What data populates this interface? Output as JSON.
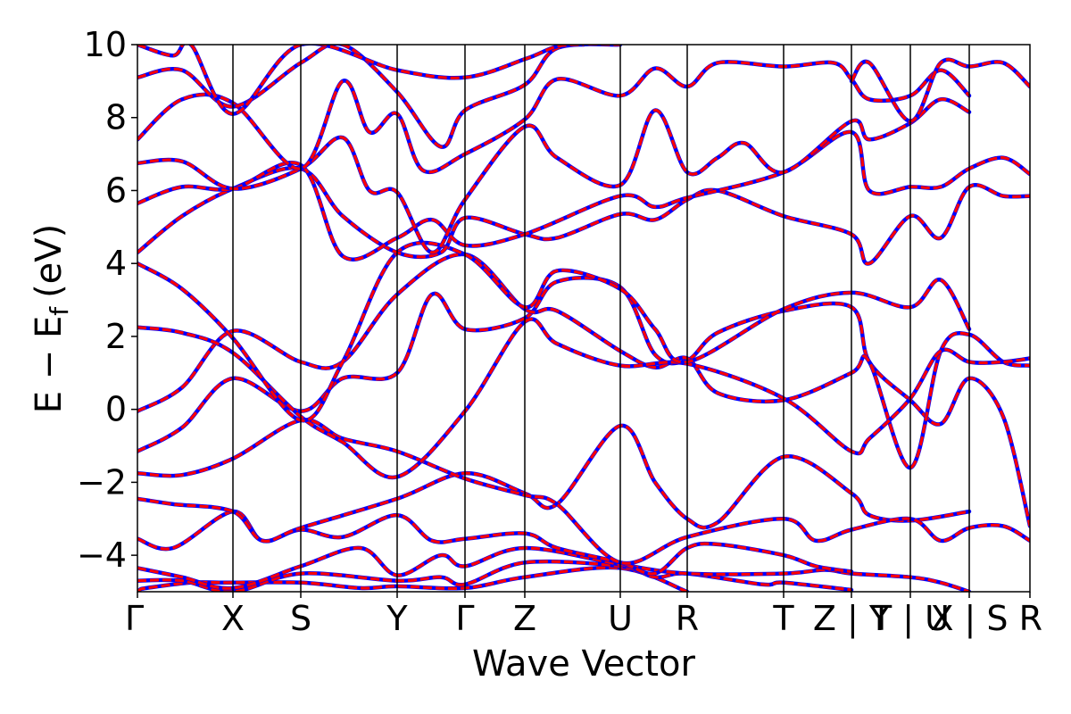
{
  "chart_data": {
    "type": "line",
    "xlabel": "Wave Vector",
    "ylabel": "E − E_f (eV)",
    "ylabel_parts": {
      "main": "E − E",
      "sub": "f",
      "unit": "(eV)"
    },
    "ylim": [
      -5,
      10
    ],
    "yticks": [
      -4,
      -2,
      0,
      2,
      4,
      6,
      8,
      10
    ],
    "ytick_labels": [
      "−4",
      "−2",
      "0",
      "2",
      "4",
      "6",
      "8",
      "10"
    ],
    "grid": false,
    "colors": {
      "series_a": "#0000ff",
      "series_b": "#ff0000",
      "frame": "#000000"
    },
    "kpath_labels": [
      "Γ",
      "X",
      "S",
      "Y",
      "Γ",
      "Z",
      "U",
      "R",
      "T",
      "Z | Y",
      "T | U",
      "X | S",
      "R"
    ],
    "kpath_positions": [
      0,
      0.107,
      0.183,
      0.291,
      0.367,
      0.434,
      0.541,
      0.616,
      0.724,
      0.8,
      0.866,
      0.932,
      1.0
    ],
    "bands": [
      [
        [
          0,
          -5.0
        ],
        [
          0.0025,
          -4.95
        ],
        [
          0.01,
          -4.9
        ],
        [
          0.06,
          -4.75
        ],
        [
          0.1,
          -4.75
        ],
        [
          0.183,
          -4.75
        ],
        [
          0.25,
          -4.9
        ],
        [
          0.291,
          -4.85
        ],
        [
          0.367,
          -4.9
        ],
        [
          0.434,
          -4.6
        ],
        [
          0.541,
          -4.35
        ],
        [
          0.616,
          -5.0
        ]
      ],
      [
        [
          0,
          -4.7
        ],
        [
          0.05,
          -4.7
        ],
        [
          0.107,
          -5.0
        ],
        [
          0.183,
          -4.5
        ],
        [
          0.291,
          -4.7
        ],
        [
          0.34,
          -4.6
        ],
        [
          0.367,
          -4.8
        ],
        [
          0.434,
          -4.2
        ],
        [
          0.541,
          -4.3
        ],
        [
          0.58,
          -4.6
        ],
        [
          0.616,
          -4.5
        ],
        [
          0.7,
          -4.8
        ],
        [
          0.724,
          -4.75
        ],
        [
          0.8,
          -4.95
        ]
      ],
      [
        [
          0,
          -4.35
        ],
        [
          0.05,
          -4.6
        ],
        [
          0.107,
          -4.9
        ],
        [
          0.183,
          -4.3
        ],
        [
          0.25,
          -3.8
        ],
        [
          0.291,
          -4.55
        ],
        [
          0.34,
          -4.0
        ],
        [
          0.367,
          -4.3
        ],
        [
          0.434,
          -3.8
        ],
        [
          0.541,
          -4.25
        ],
        [
          0.616,
          -4.5
        ],
        [
          0.724,
          -4.5
        ],
        [
          0.77,
          -4.4
        ],
        [
          0.8,
          -4.5
        ],
        [
          0.866,
          -4.6
        ],
        [
          0.9,
          -4.75
        ],
        [
          0.932,
          -5.0
        ]
      ],
      [
        [
          0,
          -3.55
        ],
        [
          0.04,
          -3.8
        ],
        [
          0.107,
          -2.8
        ],
        [
          0.14,
          -3.6
        ],
        [
          0.183,
          -3.3
        ],
        [
          0.23,
          -3.5
        ],
        [
          0.291,
          -2.9
        ],
        [
          0.33,
          -3.6
        ],
        [
          0.367,
          -3.55
        ],
        [
          0.434,
          -3.4
        ],
        [
          0.47,
          -3.8
        ],
        [
          0.541,
          -4.2
        ],
        [
          0.58,
          -4.5
        ],
        [
          0.616,
          -3.8
        ],
        [
          0.65,
          -3.7
        ],
        [
          0.724,
          -4.0
        ],
        [
          0.76,
          -4.3
        ],
        [
          0.8,
          -4.45
        ]
      ],
      [
        [
          0,
          -2.45
        ],
        [
          0.04,
          -2.6
        ],
        [
          0.107,
          -2.8
        ],
        [
          0.14,
          -3.6
        ],
        [
          0.183,
          -3.25
        ],
        [
          0.291,
          -2.45
        ],
        [
          0.367,
          -1.75
        ],
        [
          0.434,
          -2.3
        ],
        [
          0.47,
          -2.6
        ],
        [
          0.541,
          -0.45
        ],
        [
          0.58,
          -2.0
        ],
        [
          0.616,
          -3.0
        ],
        [
          0.65,
          -3.1
        ],
        [
          0.724,
          -1.3
        ],
        [
          0.8,
          -2.3
        ],
        [
          0.82,
          -2.9
        ],
        [
          0.866,
          -3.05
        ],
        [
          0.932,
          -2.8
        ]
      ],
      [
        [
          0,
          -1.75
        ],
        [
          0.05,
          -1.8
        ],
        [
          0.107,
          -1.35
        ],
        [
          0.183,
          -0.3
        ],
        [
          0.23,
          -0.8
        ],
        [
          0.291,
          -1.15
        ],
        [
          0.367,
          -1.9
        ],
        [
          0.434,
          -2.35
        ],
        [
          0.47,
          -2.6
        ],
        [
          0.541,
          -4.2
        ],
        [
          0.616,
          -3.5
        ],
        [
          0.724,
          -3.0
        ],
        [
          0.76,
          -3.6
        ],
        [
          0.8,
          -3.3
        ],
        [
          0.866,
          -3.0
        ],
        [
          0.9,
          -3.6
        ],
        [
          0.932,
          -3.25
        ],
        [
          0.97,
          -3.2
        ],
        [
          1.0,
          -3.6
        ]
      ],
      [
        [
          0,
          -1.15
        ],
        [
          0.05,
          -0.5
        ],
        [
          0.107,
          0.85
        ],
        [
          0.183,
          -0.05
        ],
        [
          0.23,
          0.85
        ],
        [
          0.291,
          1.0
        ],
        [
          0.33,
          3.15
        ],
        [
          0.367,
          2.2
        ],
        [
          0.434,
          2.5
        ],
        [
          0.47,
          3.5
        ],
        [
          0.541,
          3.35
        ],
        [
          0.58,
          1.5
        ],
        [
          0.616,
          1.35
        ],
        [
          0.65,
          2.1
        ],
        [
          0.724,
          2.7
        ],
        [
          0.8,
          2.8
        ],
        [
          0.82,
          1.3
        ],
        [
          0.866,
          0.25
        ],
        [
          0.9,
          -0.4
        ],
        [
          0.932,
          0.85
        ],
        [
          0.97,
          -0.2
        ],
        [
          1.0,
          -3.2
        ]
      ],
      [
        [
          0,
          -0.05
        ],
        [
          0.05,
          0.6
        ],
        [
          0.107,
          2.15
        ],
        [
          0.183,
          1.3
        ],
        [
          0.23,
          1.3
        ],
        [
          0.291,
          3.15
        ],
        [
          0.367,
          4.25
        ],
        [
          0.434,
          2.75
        ],
        [
          0.47,
          2.7
        ],
        [
          0.541,
          1.6
        ],
        [
          0.58,
          1.15
        ],
        [
          0.616,
          1.4
        ],
        [
          0.65,
          0.45
        ],
        [
          0.724,
          0.25
        ],
        [
          0.8,
          1.0
        ],
        [
          0.82,
          1.3
        ],
        [
          0.866,
          -1.6
        ],
        [
          0.9,
          1.6
        ],
        [
          0.932,
          2.05
        ],
        [
          0.97,
          1.3
        ],
        [
          1.0,
          1.2
        ]
      ],
      [
        [
          0,
          2.25
        ],
        [
          0.05,
          2.1
        ],
        [
          0.107,
          1.55
        ],
        [
          0.183,
          -0.2
        ],
        [
          0.23,
          -0.9
        ],
        [
          0.291,
          -1.85
        ],
        [
          0.367,
          -0.05
        ],
        [
          0.434,
          2.4
        ],
        [
          0.47,
          1.8
        ],
        [
          0.541,
          1.2
        ],
        [
          0.616,
          1.25
        ],
        [
          0.724,
          0.3
        ],
        [
          0.8,
          -1.15
        ],
        [
          0.82,
          -0.8
        ],
        [
          0.866,
          0.3
        ],
        [
          0.9,
          1.6
        ],
        [
          0.932,
          1.3
        ],
        [
          0.97,
          1.3
        ],
        [
          1.0,
          1.4
        ]
      ],
      [
        [
          0,
          4.0
        ],
        [
          0.05,
          3.3
        ],
        [
          0.107,
          1.95
        ],
        [
          0.183,
          -0.3
        ],
        [
          0.23,
          1.3
        ],
        [
          0.291,
          4.3
        ],
        [
          0.367,
          4.25
        ],
        [
          0.434,
          2.8
        ],
        [
          0.47,
          3.8
        ],
        [
          0.541,
          3.3
        ],
        [
          0.58,
          2.2
        ],
        [
          0.616,
          1.3
        ],
        [
          0.724,
          2.75
        ],
        [
          0.8,
          3.2
        ],
        [
          0.866,
          2.8
        ],
        [
          0.9,
          3.55
        ],
        [
          0.932,
          2.2
        ]
      ],
      [
        [
          0,
          4.3
        ],
        [
          0.05,
          5.3
        ],
        [
          0.107,
          6.05
        ],
        [
          0.183,
          6.6
        ],
        [
          0.23,
          5.3
        ],
        [
          0.291,
          4.3
        ],
        [
          0.34,
          4.3
        ],
        [
          0.367,
          5.25
        ],
        [
          0.434,
          4.8
        ],
        [
          0.47,
          4.7
        ],
        [
          0.541,
          5.35
        ],
        [
          0.58,
          5.2
        ],
        [
          0.616,
          5.75
        ],
        [
          0.65,
          6.0
        ],
        [
          0.724,
          5.3
        ],
        [
          0.8,
          4.8
        ],
        [
          0.82,
          4.0
        ],
        [
          0.866,
          5.3
        ],
        [
          0.9,
          4.7
        ],
        [
          0.932,
          6.1
        ],
        [
          0.97,
          5.85
        ],
        [
          1.0,
          5.85
        ]
      ],
      [
        [
          0,
          5.65
        ],
        [
          0.05,
          6.1
        ],
        [
          0.107,
          6.05
        ],
        [
          0.183,
          6.7
        ],
        [
          0.23,
          4.2
        ],
        [
          0.291,
          4.7
        ],
        [
          0.33,
          5.2
        ],
        [
          0.367,
          4.5
        ],
        [
          0.434,
          4.8
        ],
        [
          0.541,
          5.85
        ],
        [
          0.58,
          5.55
        ],
        [
          0.616,
          5.8
        ],
        [
          0.724,
          6.5
        ],
        [
          0.8,
          7.6
        ],
        [
          0.82,
          6.0
        ],
        [
          0.866,
          6.1
        ],
        [
          0.9,
          6.1
        ],
        [
          0.932,
          6.6
        ],
        [
          0.97,
          6.9
        ],
        [
          1.0,
          6.45
        ]
      ],
      [
        [
          0,
          6.75
        ],
        [
          0.05,
          6.8
        ],
        [
          0.107,
          6.05
        ],
        [
          0.183,
          6.6
        ],
        [
          0.23,
          7.45
        ],
        [
          0.26,
          6.0
        ],
        [
          0.291,
          5.95
        ],
        [
          0.33,
          4.3
        ],
        [
          0.367,
          5.75
        ],
        [
          0.434,
          7.75
        ],
        [
          0.47,
          6.9
        ],
        [
          0.541,
          6.15
        ],
        [
          0.58,
          8.2
        ],
        [
          0.616,
          6.5
        ],
        [
          0.65,
          6.9
        ],
        [
          0.68,
          7.3
        ],
        [
          0.724,
          6.5
        ],
        [
          0.8,
          7.9
        ],
        [
          0.82,
          7.4
        ],
        [
          0.866,
          7.85
        ],
        [
          0.9,
          8.5
        ],
        [
          0.932,
          8.15
        ]
      ],
      [
        [
          0,
          7.4
        ],
        [
          0.05,
          8.5
        ],
        [
          0.107,
          8.4
        ],
        [
          0.183,
          6.6
        ],
        [
          0.23,
          9.0
        ],
        [
          0.26,
          7.6
        ],
        [
          0.291,
          8.1
        ],
        [
          0.32,
          6.55
        ],
        [
          0.367,
          7.0
        ],
        [
          0.434,
          7.95
        ],
        [
          0.47,
          9.05
        ],
        [
          0.541,
          8.6
        ],
        [
          0.58,
          9.35
        ],
        [
          0.616,
          8.85
        ],
        [
          0.65,
          9.5
        ],
        [
          0.724,
          9.4
        ],
        [
          0.78,
          9.5
        ],
        [
          0.8,
          9.05
        ],
        [
          0.82,
          8.5
        ],
        [
          0.866,
          8.6
        ],
        [
          0.9,
          9.3
        ],
        [
          0.932,
          8.6
        ]
      ],
      [
        [
          0,
          9.1
        ],
        [
          0.05,
          9.3
        ],
        [
          0.107,
          8.3
        ],
        [
          0.183,
          9.5
        ],
        [
          0.23,
          10.0
        ],
        [
          0.291,
          8.7
        ],
        [
          0.34,
          7.2
        ],
        [
          0.367,
          8.2
        ],
        [
          0.434,
          8.9
        ],
        [
          0.47,
          9.9
        ],
        [
          0.541,
          10.0
        ]
      ],
      [
        [
          0,
          10.0
        ],
        [
          0.04,
          9.7
        ],
        [
          0.06,
          10.0
        ],
        [
          0.107,
          8.1
        ],
        [
          0.183,
          10.0
        ],
        [
          0.291,
          9.3
        ],
        [
          0.367,
          9.1
        ],
        [
          0.434,
          9.6
        ],
        [
          0.47,
          9.95
        ],
        [
          0.5,
          10.0
        ]
      ],
      [
        [
          0.8,
          9.0
        ],
        [
          0.82,
          9.5
        ],
        [
          0.866,
          7.9
        ],
        [
          0.9,
          9.5
        ],
        [
          0.932,
          9.4
        ],
        [
          0.97,
          9.5
        ],
        [
          1.0,
          8.85
        ]
      ]
    ]
  }
}
